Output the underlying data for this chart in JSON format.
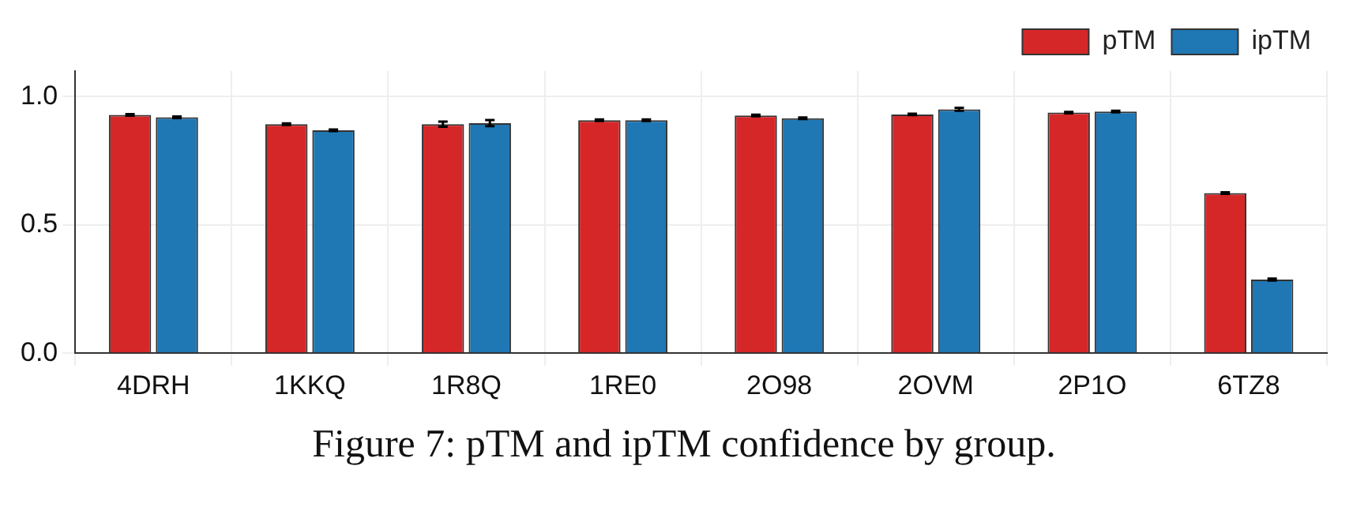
{
  "chart_data": {
    "type": "bar",
    "categories": [
      "4DRH",
      "1KKQ",
      "1R8Q",
      "1RE0",
      "2O98",
      "2OVM",
      "2P1O",
      "6TZ8"
    ],
    "series": [
      {
        "name": "pTM",
        "color": "#d62728",
        "values": [
          0.929,
          0.893,
          0.893,
          0.908,
          0.927,
          0.931,
          0.938,
          0.624
        ],
        "errors": [
          0.003,
          0.003,
          0.01,
          0.003,
          0.003,
          0.003,
          0.003,
          0.003
        ]
      },
      {
        "name": "ipTM",
        "color": "#1f77b4",
        "values": [
          0.92,
          0.869,
          0.897,
          0.908,
          0.916,
          0.951,
          0.942,
          0.287
        ],
        "errors": [
          0.003,
          0.003,
          0.012,
          0.003,
          0.003,
          0.006,
          0.003,
          0.004
        ]
      }
    ],
    "ylim": [
      0,
      1.1
    ],
    "yticks": [
      {
        "value": 0,
        "label": "0.0"
      },
      {
        "value": 0.5,
        "label": "0.5"
      },
      {
        "value": 1,
        "label": "1.0"
      }
    ],
    "grid": true,
    "legend": "top right",
    "annotations": [
      "Figure 7: pTM and ipTM confidence by group."
    ]
  }
}
